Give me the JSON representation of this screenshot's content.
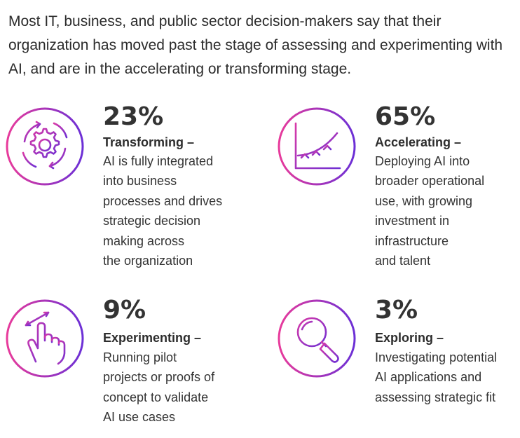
{
  "intro": "Most IT, business, and public sector decision-makers say that their organization has moved past the stage of assessing and experimenting with AI, and are in the accelerating or transforming stage.",
  "colors": {
    "gradient_start": "#e83a9b",
    "gradient_end": "#6b2fd6",
    "text": "#333333"
  },
  "stats": [
    {
      "icon": "gear-cycle-icon",
      "percent": "23%",
      "label": "Transforming –",
      "desc": "AI is fully integrated\ninto business\nprocesses and drives\nstrategic decision\nmaking across\nthe organization"
    },
    {
      "icon": "growth-chart-icon",
      "percent": "65%",
      "label": "Accelerating –",
      "desc": "Deploying AI into\nbroader operational\nuse, with growing\ninvestment in\ninfrastructure\nand talent"
    },
    {
      "icon": "swipe-hand-icon",
      "percent": "9%",
      "label": "Experimenting –",
      "desc": "Running pilot\nprojects or proofs of\nconcept to validate\nAI use cases"
    },
    {
      "icon": "magnifier-icon",
      "percent": "3%",
      "label": "Exploring –",
      "desc": "Investigating potential\nAI applications and\nassessing strategic fit"
    }
  ]
}
